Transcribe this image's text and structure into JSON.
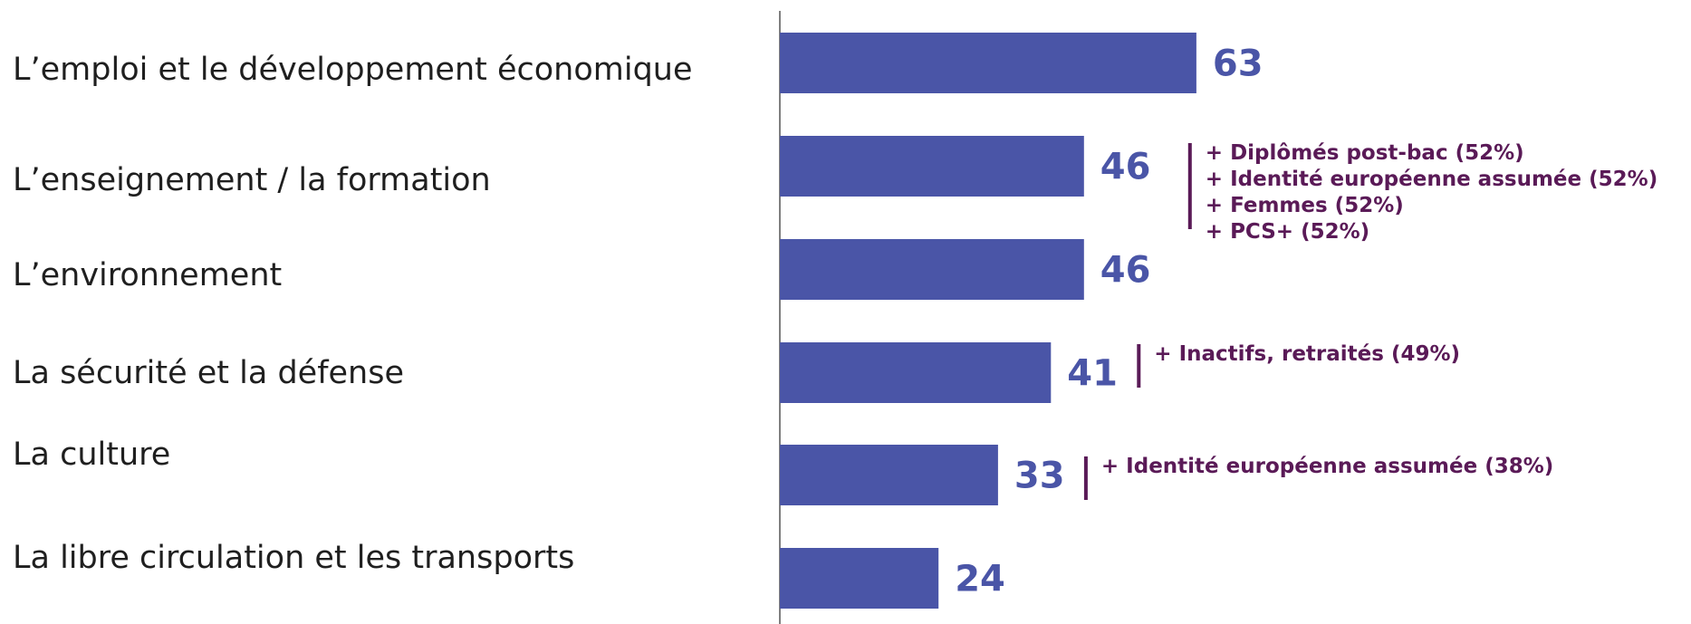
{
  "chart_data": {
    "type": "bar",
    "orientation": "horizontal",
    "categories": [
      "L’emploi et le développement économique",
      "L’enseignement / la formation",
      "L’environnement",
      "La sécurité et la défense",
      "La culture",
      "La libre circulation et les transports"
    ],
    "values": [
      63,
      46,
      46,
      41,
      33,
      24
    ],
    "xlim": [
      0,
      100
    ],
    "grid": false,
    "legend": "none",
    "annotations": [
      {
        "category_index": 1,
        "lines": [
          "+ Diplômés post-bac (52%)",
          "+ Identité européenne assumée (52%)",
          "+ Femmes (52%)",
          "+ PCS+ (52%)"
        ]
      },
      {
        "category_index": 3,
        "lines": [
          "+ Inactifs, retraités (49%)"
        ]
      },
      {
        "category_index": 4,
        "lines": [
          "+ Identité européenne assumée (38%)"
        ]
      }
    ]
  },
  "colors": {
    "bar": "#4a55a7",
    "value_text": "#4a55a7",
    "annotation": "#5a1a57",
    "axis": "#7f7f7f"
  }
}
